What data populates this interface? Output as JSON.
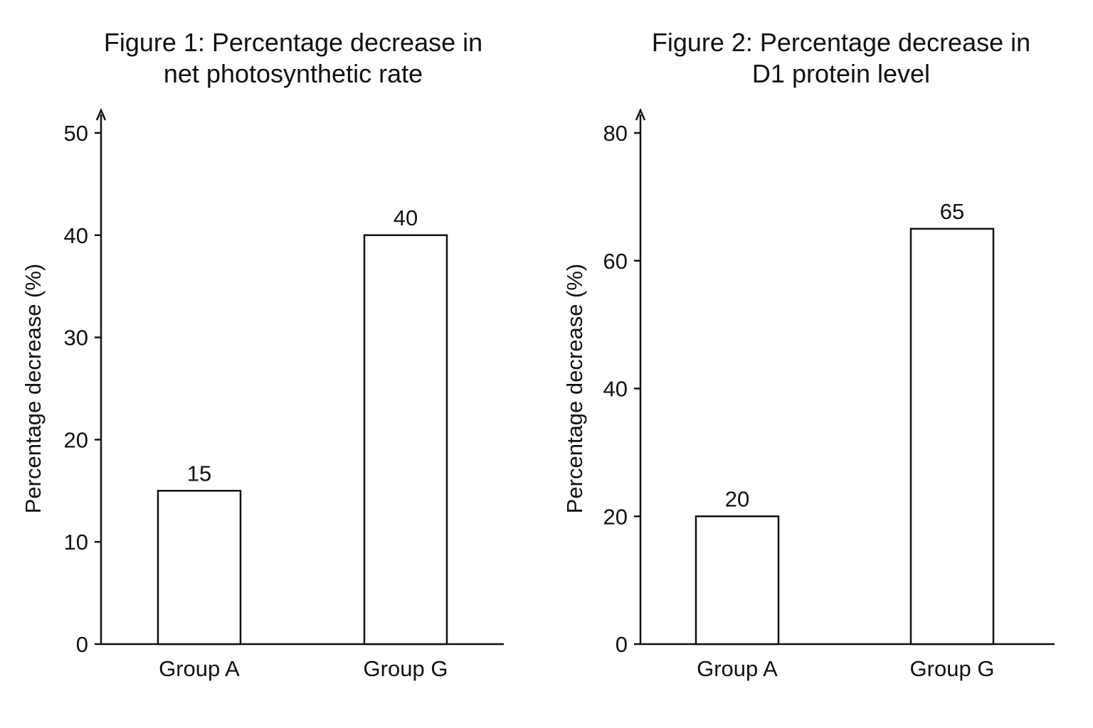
{
  "chart_data": [
    {
      "type": "bar",
      "title_lines": [
        "Figure 1: Percentage decrease in",
        "net photosynthetic rate"
      ],
      "ylabel": "Percentage decrease (%)",
      "xlabel": "",
      "categories": [
        "Group A",
        "Group G"
      ],
      "values": [
        15,
        40
      ],
      "data_labels": [
        "15",
        "40"
      ],
      "yticks": [
        0,
        10,
        20,
        30,
        40,
        50
      ],
      "ylim": [
        0,
        50
      ],
      "grid": false,
      "bar_fill": "#ffffff",
      "bar_stroke": "#111111"
    },
    {
      "type": "bar",
      "title_lines": [
        "Figure 2: Percentage decrease in",
        "D1 protein level"
      ],
      "ylabel": "Percentage decrease (%)",
      "xlabel": "",
      "categories": [
        "Group A",
        "Group G"
      ],
      "values": [
        20,
        65
      ],
      "data_labels": [
        "20",
        "65"
      ],
      "yticks": [
        0,
        20,
        40,
        60,
        80
      ],
      "ylim": [
        0,
        80
      ],
      "grid": false,
      "bar_fill": "#ffffff",
      "bar_stroke": "#111111"
    }
  ]
}
